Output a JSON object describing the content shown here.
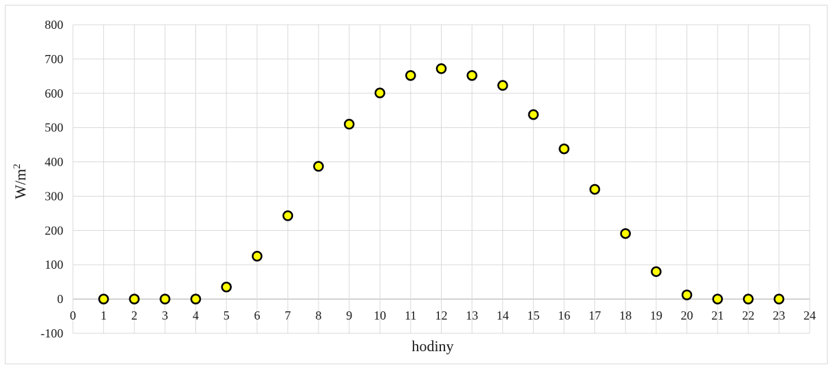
{
  "chart_data": {
    "type": "scatter",
    "xlabel": "hodiny",
    "ylabel_main": "W/m",
    "ylabel_sup": "2",
    "xlim": [
      0,
      24
    ],
    "ylim": [
      -100,
      800
    ],
    "x_ticks": [
      0,
      1,
      2,
      3,
      4,
      5,
      6,
      7,
      8,
      9,
      10,
      11,
      12,
      13,
      14,
      15,
      16,
      17,
      18,
      19,
      20,
      21,
      22,
      23,
      24
    ],
    "y_ticks": [
      -100,
      0,
      100,
      200,
      300,
      400,
      500,
      600,
      700,
      800
    ],
    "grid": true,
    "legend": "none",
    "marker_color": "#FFFF00",
    "marker_edge_color": "#000000",
    "x": [
      1,
      2,
      3,
      4,
      5,
      6,
      7,
      8,
      9,
      10,
      11,
      12,
      13,
      14,
      15,
      16,
      17,
      18,
      19,
      20,
      21,
      22,
      23
    ],
    "y": [
      0,
      0,
      0,
      0,
      35,
      125,
      243,
      387,
      510,
      601,
      652,
      672,
      652,
      623,
      538,
      438,
      320,
      191,
      80,
      12,
      0,
      0,
      0
    ]
  }
}
